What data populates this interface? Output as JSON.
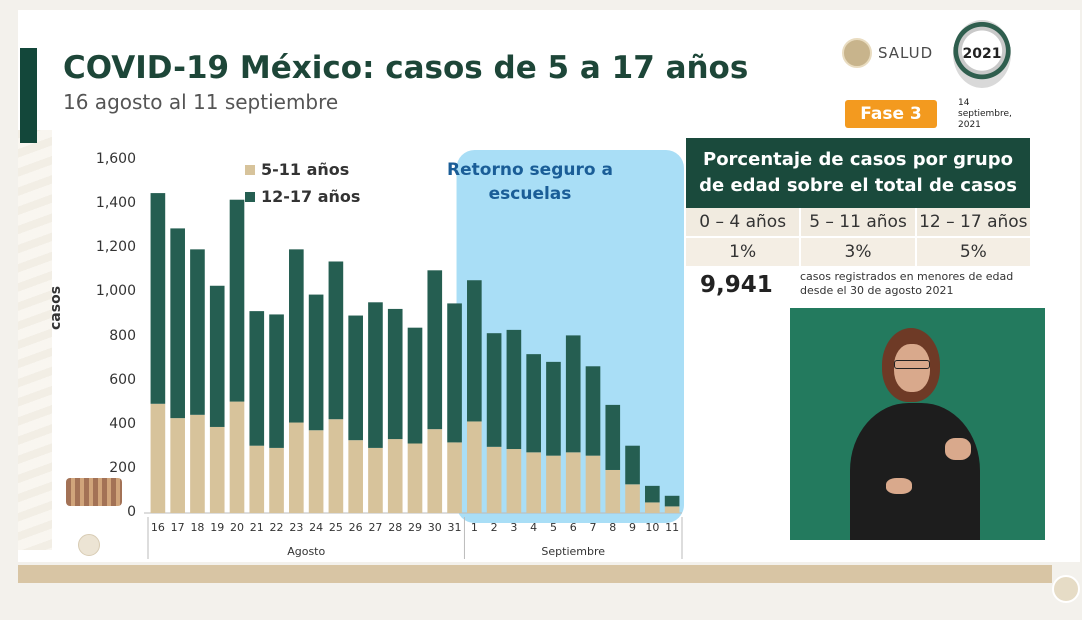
{
  "header": {
    "title": "COVID-19 México: casos de 5 a 17 años",
    "subtitle": "16 agosto al 11 septiembre",
    "salud_label": "SALUD",
    "year_badge": "2021",
    "phase_label": "Fase 3",
    "date_label": "14 septiembre, 2021"
  },
  "chart_data": {
    "type": "bar",
    "stacked": true,
    "ylabel": "casos",
    "ylim": [
      0,
      1600
    ],
    "yticks": [
      0,
      200,
      400,
      600,
      800,
      1000,
      1200,
      1400,
      1600
    ],
    "ytick_labels": [
      "0",
      "200",
      "400",
      "600",
      "800",
      "1,000",
      "1,200",
      "1,400",
      "1,600"
    ],
    "categories": [
      "16",
      "17",
      "18",
      "19",
      "20",
      "21",
      "22",
      "23",
      "24",
      "25",
      "26",
      "27",
      "28",
      "29",
      "30",
      "31",
      "1",
      "2",
      "3",
      "4",
      "5",
      "6",
      "7",
      "8",
      "9",
      "10",
      "11"
    ],
    "month_groups": [
      {
        "label": "Agosto",
        "start": 0,
        "end": 15
      },
      {
        "label": "Septiembre",
        "start": 16,
        "end": 26
      }
    ],
    "series": [
      {
        "name": "5-11 años",
        "color": "#d7c39b",
        "values": [
          495,
          430,
          445,
          390,
          505,
          305,
          295,
          410,
          375,
          425,
          330,
          295,
          335,
          315,
          380,
          320,
          415,
          300,
          290,
          275,
          260,
          275,
          260,
          195,
          130,
          48,
          30
        ]
      },
      {
        "name": "12-17 años",
        "color": "#255e51",
        "values": [
          955,
          860,
          750,
          640,
          915,
          610,
          605,
          785,
          615,
          715,
          565,
          660,
          590,
          525,
          720,
          630,
          640,
          515,
          540,
          445,
          425,
          530,
          405,
          295,
          175,
          75,
          48
        ]
      }
    ],
    "highlight": {
      "label": "Retorno seguro a escuelas",
      "start_index": 15,
      "end_index": 26,
      "color": "#a9def6"
    }
  },
  "table": {
    "title": "Porcentaje de casos por grupo de edad sobre el total de casos",
    "headers": [
      "0 – 4 años",
      "5 – 11 años",
      "12 – 17 años"
    ],
    "values": [
      "1%",
      "3%",
      "5%"
    ]
  },
  "total": {
    "value": "9,941",
    "caption": "casos registrados en menores de edad desde el 30 de agosto 2021"
  }
}
